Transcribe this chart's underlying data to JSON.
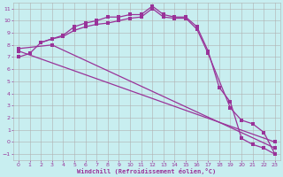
{
  "xlabel": "Windchill (Refroidissement éolien,°C)",
  "bg_color": "#c8eef0",
  "grid_color": "#b0b0b0",
  "line_color": "#993399",
  "xlim": [
    -0.5,
    23.5
  ],
  "ylim": [
    -1.5,
    11.5
  ],
  "xticks": [
    0,
    1,
    2,
    3,
    4,
    5,
    6,
    7,
    8,
    9,
    10,
    11,
    12,
    13,
    14,
    15,
    16,
    17,
    18,
    19,
    20,
    21,
    22,
    23
  ],
  "yticks": [
    -1,
    0,
    1,
    2,
    3,
    4,
    5,
    6,
    7,
    8,
    9,
    10,
    11
  ],
  "line1_x": [
    0,
    1,
    2,
    3,
    4,
    5,
    6,
    7,
    8,
    9,
    10,
    11,
    12,
    13,
    14,
    15,
    16,
    17,
    18,
    19,
    20,
    21,
    22,
    23
  ],
  "line1_y": [
    7.0,
    7.3,
    8.2,
    8.5,
    8.8,
    9.5,
    9.8,
    10.0,
    10.3,
    10.3,
    10.5,
    10.5,
    11.2,
    10.5,
    10.3,
    10.3,
    9.5,
    7.5,
    4.5,
    3.3,
    0.3,
    -0.2,
    -0.5,
    -1.0
  ],
  "line2_x": [
    2,
    3,
    4,
    5,
    6,
    7,
    8,
    9,
    10,
    11,
    12,
    13,
    14,
    15,
    16,
    17,
    19,
    20,
    21,
    22,
    23
  ],
  "line2_y": [
    8.2,
    8.5,
    8.7,
    9.2,
    9.5,
    9.7,
    9.8,
    10.0,
    10.2,
    10.3,
    11.0,
    10.3,
    10.2,
    10.2,
    9.3,
    7.3,
    2.8,
    1.8,
    1.5,
    0.8,
    -1.0
  ],
  "line3_x": [
    0,
    3,
    23
  ],
  "line3_y": [
    7.7,
    8.0,
    -0.5
  ],
  "line4_x": [
    0,
    23
  ],
  "line4_y": [
    7.5,
    0.0
  ]
}
